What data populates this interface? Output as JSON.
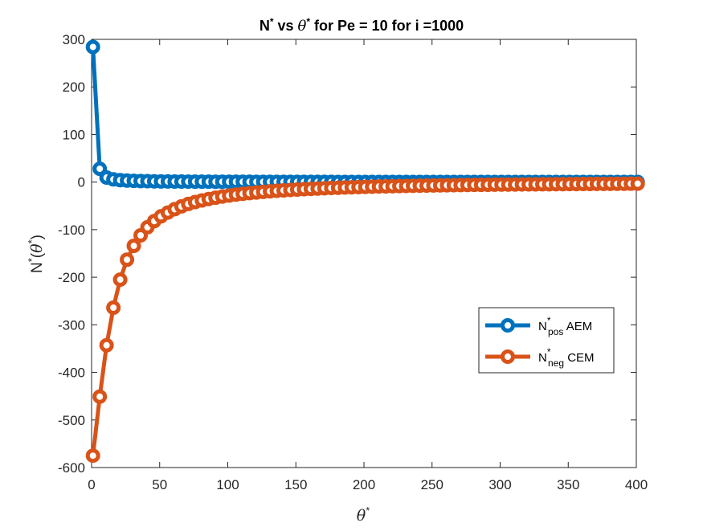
{
  "chart_data": {
    "type": "line",
    "title_parts": {
      "n": "N",
      "n_sup": "*",
      "vs": " vs ",
      "theta": "θ",
      "theta_sup": "*",
      "rest": " for Pe = 10 for i =1000"
    },
    "xlabel_parts": {
      "theta": "θ",
      "sup": "*"
    },
    "ylabel_parts": {
      "n": "N",
      "n_sup": "*",
      "open": "(",
      "theta": "θ",
      "theta_sup": "*",
      "close": ")"
    },
    "xlim": [
      0,
      400
    ],
    "ylim": [
      -600,
      300
    ],
    "xticks": [
      0,
      50,
      100,
      150,
      200,
      250,
      300,
      350,
      400
    ],
    "yticks": [
      300,
      200,
      100,
      0,
      -100,
      -200,
      -300,
      -400,
      -500,
      -600
    ],
    "grid": false,
    "legend": {
      "placement": "lower-right"
    },
    "x_step": 5,
    "x_start": 1,
    "x_end": 401,
    "series": [
      {
        "label_main": "N",
        "label_sup": "*",
        "label_sub": "pos",
        "label_suffix": " AEM",
        "color": "#0072BD",
        "values": [
          284,
          28,
          9.5,
          5.7,
          4.1,
          3.2,
          2.6,
          2.2,
          1.9,
          1.6,
          1.4,
          1.3,
          1.2,
          1.1,
          1.0,
          0.95,
          0.89,
          0.84,
          0.79,
          0.75,
          0.71,
          0.68,
          0.65,
          0.62,
          0.59,
          0.57,
          0.55,
          0.53,
          0.51,
          0.49,
          0.47,
          0.46,
          0.44,
          0.43,
          0.42,
          0.41,
          0.39,
          0.38,
          0.37,
          0.36,
          0.36,
          0.35,
          0.34,
          0.33,
          0.32,
          0.32,
          0.31,
          0.3,
          0.3,
          0.29,
          0.29,
          0.28,
          0.28,
          0.27,
          0.27,
          0.26,
          0.26,
          0.25,
          0.25,
          0.24,
          0.24,
          0.24,
          0.23,
          0.23,
          0.22,
          0.22,
          0.22,
          0.21,
          0.21,
          0.21,
          0.2,
          0.2,
          0.2,
          0.2,
          0.19,
          0.19,
          0.19,
          0.19,
          0.18,
          0.18,
          0.18
        ]
      },
      {
        "label_main": "N",
        "label_sup": "*",
        "label_sub": "neg",
        "label_suffix": " CEM",
        "color": "#D95319",
        "values": [
          -575,
          -451,
          -343,
          -264,
          -205,
          -163,
          -134,
          -112,
          -95,
          -82,
          -72,
          -64,
          -57,
          -51,
          -46,
          -42,
          -38.5,
          -35.5,
          -32.8,
          -30.4,
          -28.3,
          -26.4,
          -24.7,
          -23.2,
          -21.8,
          -20.6,
          -19.4,
          -18.4,
          -17.4,
          -16.5,
          -15.7,
          -15.0,
          -14.3,
          -13.6,
          -13.0,
          -12.4,
          -11.9,
          -11.4,
          -10.9,
          -10.5,
          -10.1,
          -9.7,
          -9.3,
          -9.0,
          -8.7,
          -8.4,
          -8.1,
          -7.8,
          -7.6,
          -7.3,
          -7.1,
          -6.9,
          -6.7,
          -6.5,
          -6.3,
          -6.1,
          -5.9,
          -5.8,
          -5.6,
          -5.5,
          -5.3,
          -5.2,
          -5.1,
          -4.9,
          -4.8,
          -4.7,
          -4.6,
          -4.5,
          -4.4,
          -4.3,
          -4.2,
          -4.1,
          -4.0,
          -3.9,
          -3.8,
          -3.7,
          -3.7,
          -3.6,
          -3.5,
          -3.4,
          -3.4
        ]
      }
    ]
  }
}
